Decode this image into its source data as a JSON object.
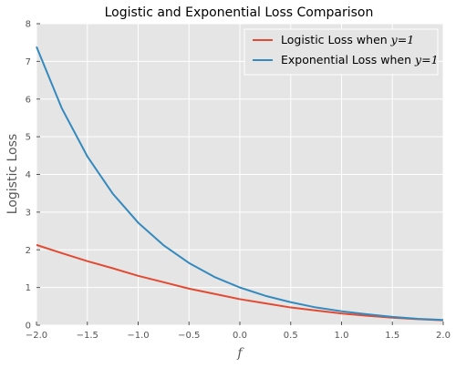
{
  "chart_data": {
    "type": "line",
    "title": "Logistic and Exponential Loss Comparison",
    "xlabel": "f",
    "ylabel": "Logistic Loss",
    "xlim": [
      -2.0,
      2.0
    ],
    "ylim": [
      0,
      8
    ],
    "xticks": [
      "−2.0",
      "−1.5",
      "−1.0",
      "−0.5",
      "0.0",
      "0.5",
      "1.0",
      "1.5",
      "2.0"
    ],
    "yticks": [
      "0",
      "1",
      "2",
      "3",
      "4",
      "5",
      "6",
      "7",
      "8"
    ],
    "grid": true,
    "legend_position": "top-right",
    "x": [
      -2.0,
      -1.75,
      -1.5,
      -1.25,
      -1.0,
      -0.75,
      -0.5,
      -0.25,
      0.0,
      0.25,
      0.5,
      0.75,
      1.0,
      1.25,
      1.5,
      1.75,
      2.0
    ],
    "series": [
      {
        "name": "Logistic Loss when",
        "name_math": "y=1",
        "color": "#e24a33",
        "values": [
          2.13,
          1.91,
          1.7,
          1.51,
          1.31,
          1.14,
          0.97,
          0.83,
          0.69,
          0.58,
          0.47,
          0.39,
          0.31,
          0.25,
          0.2,
          0.16,
          0.13
        ]
      },
      {
        "name": "Exponential Loss when",
        "name_math": "y=1",
        "color": "#348abd",
        "values": [
          7.39,
          5.75,
          4.48,
          3.49,
          2.72,
          2.12,
          1.65,
          1.28,
          1.0,
          0.78,
          0.61,
          0.47,
          0.37,
          0.29,
          0.22,
          0.17,
          0.14
        ]
      }
    ]
  }
}
